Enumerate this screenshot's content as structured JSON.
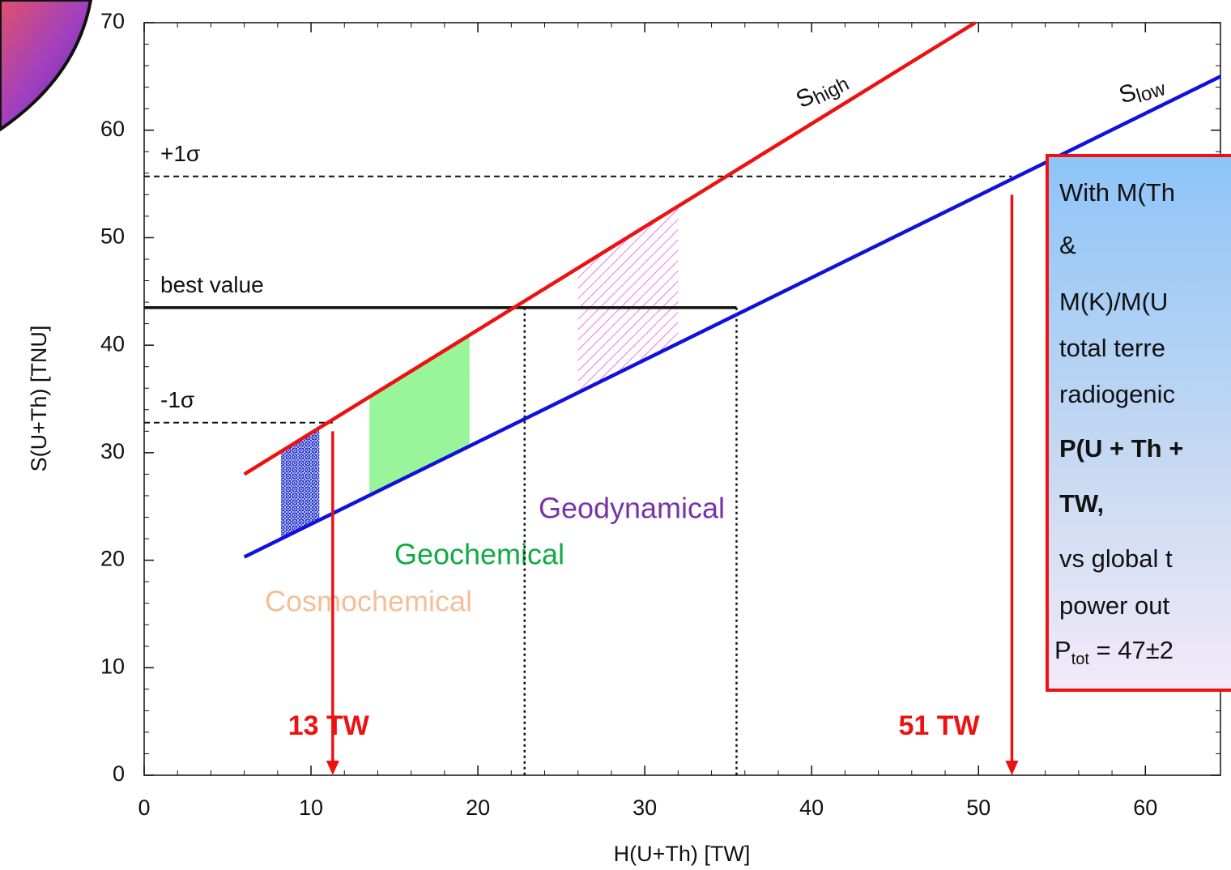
{
  "chart_data": {
    "type": "line",
    "x_label": "H(U+Th) [TW]",
    "y_label": "S(U+Th) [TNU]",
    "xlim": [
      0,
      64.5
    ],
    "ylim": [
      0,
      70
    ],
    "xticks": [
      0,
      10,
      20,
      30,
      40,
      50,
      60
    ],
    "yticks": [
      0,
      10,
      20,
      30,
      40,
      50,
      60,
      70
    ],
    "series": [
      {
        "label": "S",
        "label_sub": "high",
        "color": "#ee1111",
        "x": [
          6,
          49.8
        ],
        "values": [
          28,
          70
        ]
      },
      {
        "label": "S",
        "label_sub": "low",
        "color": "#1111dd",
        "x": [
          6,
          64.5
        ],
        "values": [
          20.3,
          65
        ]
      }
    ],
    "hlines": [
      {
        "label": "+1σ",
        "value": 55.7,
        "x_end": 52,
        "style": "dashed"
      },
      {
        "label": "best value",
        "value": 43.5,
        "x_end": 35.5,
        "style": "solid"
      },
      {
        "label": "-1σ",
        "value": 32.8,
        "x_end": 11.3,
        "style": "dashed"
      }
    ],
    "vlines": [
      {
        "x": 22.8,
        "y_top": 43.5
      },
      {
        "x": 35.5,
        "y_top": 43.5
      }
    ],
    "arrows": [
      {
        "label": "13 TW",
        "x": 11.3,
        "y_top": 32
      },
      {
        "label": "51 TW",
        "x": 52,
        "y_top": 54
      }
    ],
    "regions": [
      {
        "label": "Cosmochemical",
        "color": "#f4bf98",
        "fill": "#2233cc",
        "x": [
          8.2,
          10.5
        ]
      },
      {
        "label": "Geochemical",
        "color": "#11aa44",
        "fill": "#99f599",
        "x": [
          13.5,
          19.5
        ]
      },
      {
        "label": "Geodynamical",
        "color": "#7733aa",
        "fill": "#ee55dd",
        "x": [
          26,
          32
        ]
      }
    ],
    "text_box": {
      "lines": [
        "With M(Th",
        "&",
        "M(K)/M(U",
        "total  terre",
        "radiogenic",
        "P(U + Th +",
        "TW,",
        "vs global t",
        "power out"
      ],
      "bold_lines": [
        5,
        6
      ],
      "last_line": {
        "main": "P",
        "sub": "tot",
        "rest": " = 47±2"
      }
    }
  }
}
